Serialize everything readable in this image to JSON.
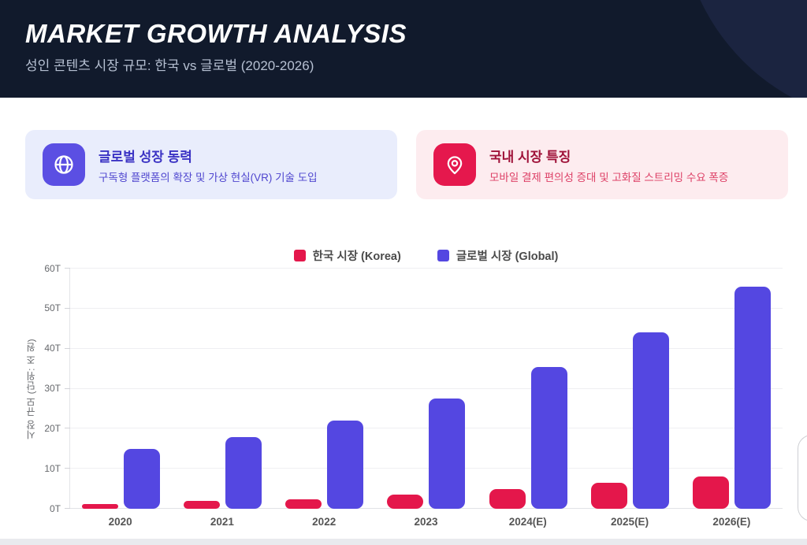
{
  "header": {
    "title": "MARKET GROWTH ANALYSIS",
    "subtitle": "성인 콘텐츠 시장 규모: 한국 vs 글로벌 (2020-2026)"
  },
  "cards": [
    {
      "icon": "globe-icon",
      "title": "글로벌 성장 동력",
      "description": "구독형 플랫폼의 확장 및 가상 현실(VR) 기술 도입",
      "accent": "#5b4fe3",
      "bg": "#e9edfc"
    },
    {
      "icon": "location-pin-icon",
      "title": "국내 시장 특징",
      "description": "모바일 결제 편의성 증대 및 고화질 스트리밍 수요 폭증",
      "accent": "#e5184d",
      "bg": "#fdecef"
    }
  ],
  "chart_data": {
    "type": "bar",
    "categories": [
      "2020",
      "2021",
      "2022",
      "2023",
      "2024(E)",
      "2025(E)",
      "2026(E)"
    ],
    "series": [
      {
        "name": "한국 시장 (Korea)",
        "color": "#e4174b",
        "values": [
          1.2,
          2,
          2.4,
          3.6,
          5,
          6.5,
          8
        ]
      },
      {
        "name": "글로벌 시장 (Global)",
        "color": "#5447e1",
        "values": [
          15,
          18,
          22,
          27.5,
          35.5,
          44,
          55.5
        ]
      }
    ],
    "title": "",
    "xlabel": "",
    "ylabel": "시장 규모 (단위: 조 원)",
    "yticks": [
      "0T",
      "10T",
      "20T",
      "30T",
      "40T",
      "50T",
      "60T"
    ],
    "ylim": [
      0,
      60
    ],
    "grid": true,
    "legend_position": "top"
  },
  "colors": {
    "header_bg": "#111a2c",
    "header_circle": "#1b2440",
    "korea_red": "#e4174b",
    "global_blue": "#5447e1",
    "page_bg": "#ffffff",
    "bottom_strip": "#e9eaee"
  }
}
